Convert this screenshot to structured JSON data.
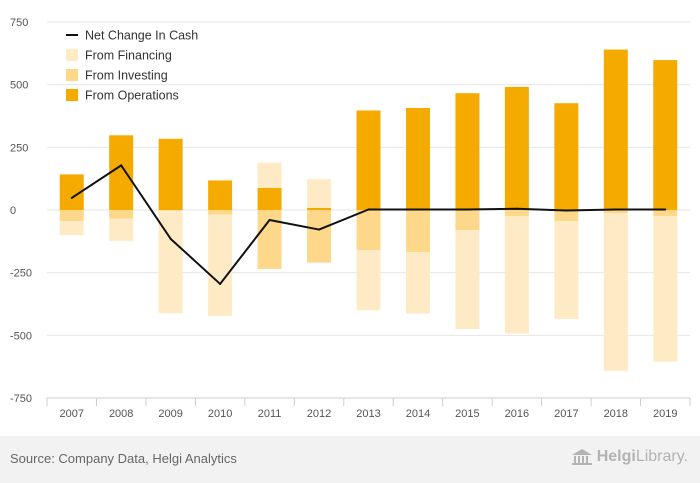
{
  "colors": {
    "operations": "#f5aa00",
    "investing": "#fdd88b",
    "financing": "#feebc6",
    "net": "#111111",
    "gridline": "#e6e6e6",
    "axis": "#cccccc"
  },
  "footer": {
    "source": "Source: Company Data, Helgi Analytics",
    "brand_name": "Helgi",
    "brand_suffix": "Library.",
    "brand_icon": "library-building-icon"
  },
  "chart_data": {
    "type": "bar",
    "stacked": true,
    "categories": [
      "2007",
      "2008",
      "2009",
      "2010",
      "2011",
      "2012",
      "2013",
      "2014",
      "2015",
      "2016",
      "2017",
      "2018",
      "2019"
    ],
    "ylim": [
      -750,
      750
    ],
    "yticks": [
      750,
      500,
      250,
      0,
      -250,
      -500,
      -750
    ],
    "ytick_labels": [
      "750",
      "500",
      "250",
      "0",
      "-250",
      "-500",
      "-750"
    ],
    "legend_position": "top-left",
    "legend": [
      "Net Change In Cash",
      "From Financing",
      "From Investing",
      "From Operations"
    ],
    "series": [
      {
        "name": "From Operations",
        "type": "bar",
        "values": [
          142,
          298,
          284,
          118,
          88,
          8,
          397,
          407,
          466,
          491,
          426,
          640,
          598
        ]
      },
      {
        "name": "From Investing",
        "type": "bar",
        "values": [
          -45,
          -35,
          -2,
          -18,
          -235,
          -210,
          -160,
          -168,
          -80,
          -25,
          -45,
          -12,
          -25
        ]
      },
      {
        "name": "From Financing",
        "type": "bar",
        "values": [
          -55,
          -88,
          -410,
          -405,
          100,
          115,
          -240,
          -245,
          -395,
          -468,
          -390,
          -630,
          -580
        ]
      },
      {
        "name": "Net Change In Cash",
        "type": "line",
        "values": [
          48,
          178,
          -115,
          -295,
          -40,
          -78,
          2,
          2,
          2,
          5,
          -2,
          2,
          2
        ]
      }
    ]
  }
}
